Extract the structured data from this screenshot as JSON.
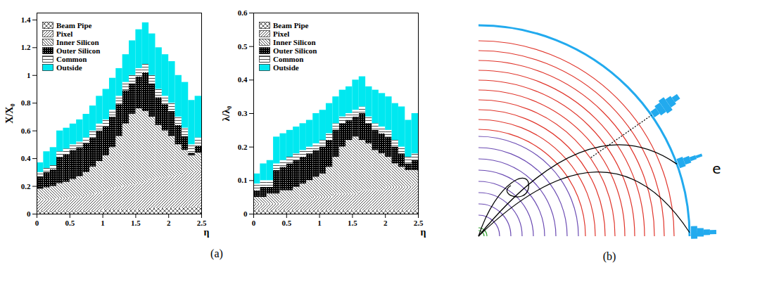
{
  "chart_data": [
    {
      "type": "histogram",
      "stacked": true,
      "legend": "top-left",
      "x_label": "η",
      "y_label": "X/X₀",
      "xlim": [
        0,
        2.5
      ],
      "xticks": [
        0,
        0.5,
        1,
        1.5,
        2,
        2.5
      ],
      "ylim": [
        0,
        1.45
      ],
      "yticks": [
        0,
        0.2,
        0.4,
        0.6,
        0.8,
        1,
        1.2,
        1.4
      ],
      "bins": [
        0,
        0.1,
        0.2,
        0.3,
        0.4,
        0.5,
        0.6,
        0.7,
        0.8,
        0.9,
        1,
        1.1,
        1.2,
        1.3,
        1.4,
        1.5,
        1.6,
        1.7,
        1.8,
        1.9,
        2,
        2.1,
        2.2,
        2.3,
        2.4,
        2.5
      ],
      "series": [
        {
          "name": "Beam Pipe",
          "color": "#000000",
          "values": [
            0.02,
            0.02,
            0.02,
            0.02,
            0.02,
            0.02,
            0.02,
            0.02,
            0.02,
            0.02,
            0.03,
            0.03,
            0.03,
            0.03,
            0.03,
            0.03,
            0.03,
            0.04,
            0.04,
            0.04,
            0.04,
            0.04,
            0.05,
            0.05,
            0.05
          ]
        },
        {
          "name": "Pixel",
          "color": "#000000",
          "values": [
            0.08,
            0.08,
            0.08,
            0.09,
            0.09,
            0.1,
            0.1,
            0.11,
            0.12,
            0.13,
            0.14,
            0.15,
            0.16,
            0.17,
            0.18,
            0.19,
            0.2,
            0.21,
            0.22,
            0.22,
            0.23,
            0.24,
            0.25,
            0.25,
            0.26
          ]
        },
        {
          "name": "Inner Silicon",
          "color": "#000000",
          "values": [
            0.08,
            0.09,
            0.1,
            0.11,
            0.12,
            0.13,
            0.15,
            0.17,
            0.2,
            0.23,
            0.25,
            0.3,
            0.37,
            0.45,
            0.51,
            0.54,
            0.51,
            0.45,
            0.38,
            0.34,
            0.29,
            0.22,
            0.16,
            0.12,
            0.13
          ]
        },
        {
          "name": "Outer Silicon",
          "color": "#000000",
          "values": [
            0.09,
            0.11,
            0.12,
            0.19,
            0.2,
            0.21,
            0.21,
            0.21,
            0.21,
            0.22,
            0.21,
            0.22,
            0.23,
            0.24,
            0.22,
            0.23,
            0.28,
            0.24,
            0.2,
            0.19,
            0.18,
            0.14,
            0.1,
            0.02,
            0.05
          ]
        },
        {
          "name": "Common",
          "color": "#000000",
          "values": [
            0.03,
            0.03,
            0.03,
            0.04,
            0.04,
            0.04,
            0.04,
            0.04,
            0.05,
            0.05,
            0.05,
            0.05,
            0.06,
            0.06,
            0.06,
            0.06,
            0.06,
            0.06,
            0.06,
            0.06,
            0.06,
            0.06,
            0.06,
            0.06,
            0.06
          ]
        },
        {
          "name": "Outside",
          "color": "#00e8f0",
          "values": [
            0.07,
            0.12,
            0.13,
            0.15,
            0.15,
            0.15,
            0.16,
            0.17,
            0.18,
            0.2,
            0.22,
            0.23,
            0.2,
            0.2,
            0.25,
            0.28,
            0.3,
            0.3,
            0.3,
            0.3,
            0.3,
            0.3,
            0.33,
            0.32,
            0.3
          ]
        }
      ]
    },
    {
      "type": "histogram",
      "stacked": true,
      "legend": "top-left",
      "x_label": "η",
      "y_label": "λ/λ₀",
      "xlim": [
        0,
        2.5
      ],
      "xticks": [
        0,
        0.5,
        1,
        1.5,
        2,
        2.5
      ],
      "ylim": [
        0,
        0.6
      ],
      "yticks": [
        0,
        0.1,
        0.2,
        0.3,
        0.4,
        0.5,
        0.6
      ],
      "bins": [
        0,
        0.1,
        0.2,
        0.3,
        0.4,
        0.5,
        0.6,
        0.7,
        0.8,
        0.9,
        1,
        1.1,
        1.2,
        1.3,
        1.4,
        1.5,
        1.6,
        1.7,
        1.8,
        1.9,
        2,
        2.1,
        2.2,
        2.3,
        2.4,
        2.5
      ],
      "series": [
        {
          "name": "Beam Pipe",
          "color": "#000000",
          "values": [
            0.01,
            0.01,
            0.01,
            0.01,
            0.01,
            0.01,
            0.01,
            0.01,
            0.01,
            0.01,
            0.01,
            0.01,
            0.01,
            0.01,
            0.01,
            0.01,
            0.01,
            0.01,
            0.01,
            0.01,
            0.01,
            0.01,
            0.01,
            0.01,
            0.01
          ]
        },
        {
          "name": "Pixel",
          "color": "#000000",
          "values": [
            0.02,
            0.02,
            0.02,
            0.02,
            0.03,
            0.03,
            0.03,
            0.03,
            0.03,
            0.04,
            0.04,
            0.04,
            0.05,
            0.05,
            0.05,
            0.05,
            0.06,
            0.06,
            0.06,
            0.06,
            0.07,
            0.07,
            0.07,
            0.07,
            0.08
          ]
        },
        {
          "name": "Inner Silicon",
          "color": "#000000",
          "values": [
            0.02,
            0.02,
            0.03,
            0.03,
            0.03,
            0.03,
            0.04,
            0.05,
            0.06,
            0.06,
            0.07,
            0.09,
            0.11,
            0.14,
            0.16,
            0.17,
            0.15,
            0.14,
            0.12,
            0.11,
            0.09,
            0.07,
            0.06,
            0.05,
            0.04
          ]
        },
        {
          "name": "Outer Silicon",
          "color": "#000000",
          "values": [
            0.02,
            0.03,
            0.02,
            0.07,
            0.07,
            0.08,
            0.08,
            0.08,
            0.08,
            0.08,
            0.08,
            0.08,
            0.08,
            0.07,
            0.06,
            0.06,
            0.08,
            0.06,
            0.06,
            0.06,
            0.06,
            0.05,
            0.04,
            0.02,
            0.03
          ]
        },
        {
          "name": "Common",
          "color": "#000000",
          "values": [
            0.02,
            0.02,
            0.02,
            0.02,
            0.02,
            0.02,
            0.02,
            0.02,
            0.02,
            0.02,
            0.02,
            0.02,
            0.02,
            0.02,
            0.02,
            0.02,
            0.02,
            0.02,
            0.02,
            0.02,
            0.02,
            0.02,
            0.02,
            0.02,
            0.02
          ]
        },
        {
          "name": "Outside",
          "color": "#00e8f0",
          "values": [
            0.03,
            0.05,
            0.06,
            0.08,
            0.08,
            0.08,
            0.08,
            0.08,
            0.08,
            0.09,
            0.09,
            0.09,
            0.08,
            0.08,
            0.08,
            0.09,
            0.09,
            0.09,
            0.1,
            0.1,
            0.1,
            0.11,
            0.12,
            0.11,
            0.12
          ]
        }
      ]
    }
  ],
  "diagram": {
    "track_label": "e"
  },
  "panel_labels": [
    "(a)",
    "(b)"
  ]
}
